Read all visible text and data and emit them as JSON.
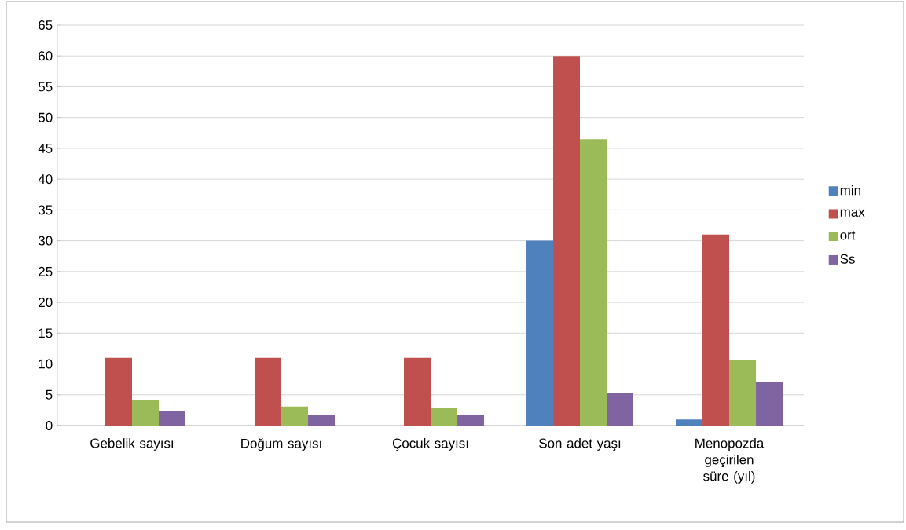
{
  "chart_data": {
    "type": "bar",
    "categories": [
      "Gebelik sayısı",
      "Doğum sayısı",
      "Çocuk sayısı",
      "Son adet yaşı",
      "Menopozda geçirilen süre (yıl)"
    ],
    "series": [
      {
        "name": "min",
        "color": "#4f81bd",
        "values": [
          0,
          0,
          0,
          30,
          1
        ]
      },
      {
        "name": "max",
        "color": "#c0504d",
        "values": [
          11,
          11,
          11,
          60,
          31
        ]
      },
      {
        "name": "ort",
        "color": "#9bbb59",
        "values": [
          4.1,
          3.1,
          2.9,
          46.5,
          10.6
        ]
      },
      {
        "name": "Ss",
        "color": "#8064a2",
        "values": [
          2.3,
          1.8,
          1.7,
          5.3,
          7
        ]
      }
    ],
    "ylim": [
      0,
      65
    ],
    "yticks": [
      0,
      5,
      10,
      15,
      20,
      25,
      30,
      35,
      40,
      45,
      50,
      55,
      60,
      65
    ],
    "grid": "y",
    "legend": "right"
  }
}
